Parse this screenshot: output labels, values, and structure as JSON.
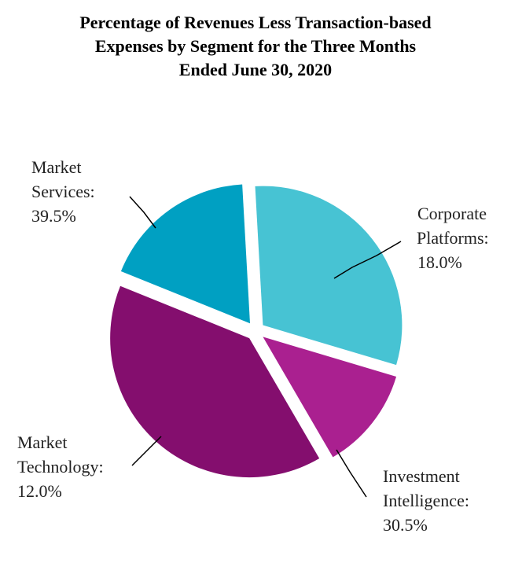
{
  "chart_data": {
    "type": "pie",
    "title_lines": [
      "Percentage of Revenues Less Transaction-based",
      "Expenses by Segment for the Three Months",
      "Ended June 30, 2020"
    ],
    "slices": [
      {
        "name": "Corporate Platforms",
        "value": 18.0,
        "label_lines": [
          "Corporate",
          "Platforms:",
          "18.0%"
        ],
        "color": "#00A0C2"
      },
      {
        "name": "Investment Intelligence",
        "value": 30.5,
        "label_lines": [
          "Investment",
          "Intelligence:",
          "30.5%"
        ],
        "color": "#47C3D3"
      },
      {
        "name": "Market Technology",
        "value": 12.0,
        "label_lines": [
          "Market",
          "Technology:",
          "12.0%"
        ],
        "color": "#AA2090"
      },
      {
        "name": "Market Services",
        "value": 39.5,
        "label_lines": [
          "Market",
          "Services:",
          "39.5%"
        ],
        "color": "#840E6E"
      }
    ],
    "legend": "none",
    "exploded": true
  }
}
